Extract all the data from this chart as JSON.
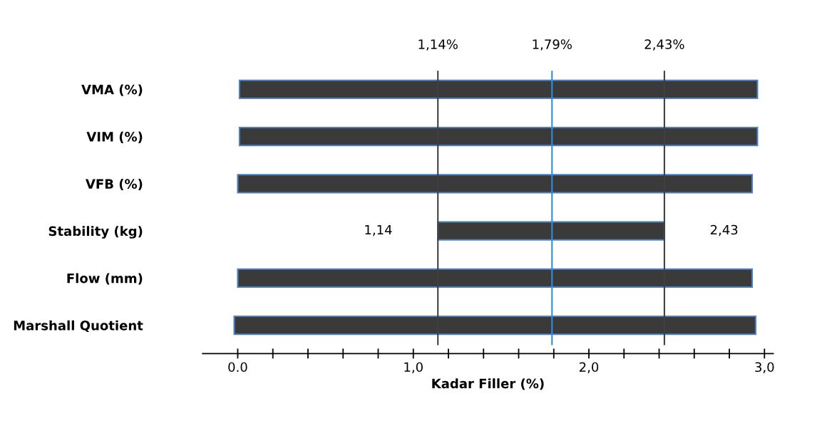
{
  "chart_data": {
    "type": "bar",
    "orientation": "horizontal",
    "xlabel": "Kadar Filler (%)",
    "categories": [
      "VMA (%)",
      "VIM (%)",
      "VFB (%)",
      "Stability (kg)",
      "Flow (mm)",
      "Marshall Quotient"
    ],
    "base": [
      0.01,
      0.01,
      0,
      1.14,
      0,
      -0.02
    ],
    "values": [
      2.95,
      2.95,
      2.93,
      1.29,
      2.93,
      2.97
    ],
    "color": "#3a3a3a",
    "xlim": [
      -0.2,
      3.05
    ],
    "xticks": [
      {
        "value": 0,
        "label": "0.0"
      },
      {
        "value": 0.2,
        "label": null
      },
      {
        "value": 0.4,
        "label": null
      },
      {
        "value": 0.6,
        "label": null
      },
      {
        "value": 0.8,
        "label": null
      },
      {
        "value": 1.0,
        "label": "1,0"
      },
      {
        "value": 1.2,
        "label": null
      },
      {
        "value": 1.4,
        "label": null
      },
      {
        "value": 1.6,
        "label": null
      },
      {
        "value": 1.8,
        "label": null
      },
      {
        "value": 2.0,
        "label": "2,0"
      },
      {
        "value": 2.2,
        "label": null
      },
      {
        "value": 2.4,
        "label": null
      },
      {
        "value": 2.6,
        "label": null
      },
      {
        "value": 2.8,
        "label": null
      },
      {
        "value": 3.0,
        "label": "3,0"
      }
    ],
    "ref_lines": [
      {
        "axis": "x",
        "value": 1.14,
        "label": "1,14%",
        "color": "#404040"
      },
      {
        "axis": "x",
        "value": 1.79,
        "label": "1,79%",
        "color": "#2e8fe0"
      },
      {
        "axis": "x",
        "value": 2.43,
        "label": "2,43%",
        "color": "#404040"
      }
    ],
    "annotations": [
      "1,14",
      "2,43"
    ],
    "grid": false,
    "legend": false
  }
}
